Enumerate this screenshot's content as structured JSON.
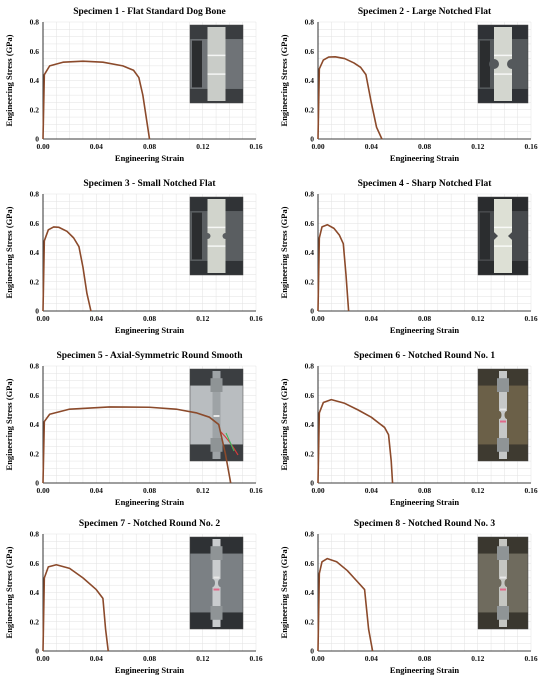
{
  "figure": {
    "xlabel": "Engineering Strain",
    "ylabel": "Engineering Stress (GPa)",
    "line_color": "#8B4A2B",
    "grid_color": "#e2e2e2"
  },
  "chart_data": [
    {
      "type": "line",
      "title": "Specimen 1 - Flat Standard Dog Bone",
      "xlabel": "Engineering Strain",
      "ylabel": "Engineering Stress (GPa)",
      "xlim": [
        0,
        0.16
      ],
      "ylim": [
        0,
        0.8
      ],
      "xticks": [
        "0.00",
        "0.04",
        "0.08",
        "0.12",
        "0.16"
      ],
      "yticks": [
        "0",
        "0.2",
        "0.4",
        "0.6",
        "0.8"
      ],
      "grid": true,
      "photo": "flat-dog-bone-specimen-photo",
      "series": [
        {
          "x": [
            0,
            0.001,
            0.005,
            0.015,
            0.03,
            0.045,
            0.06,
            0.068,
            0.072,
            0.075,
            0.078,
            0.08
          ],
          "y": [
            0,
            0.44,
            0.5,
            0.525,
            0.532,
            0.525,
            0.5,
            0.47,
            0.42,
            0.3,
            0.12,
            0
          ]
        }
      ]
    },
    {
      "type": "line",
      "title": "Specimen 2 - Large Notched Flat",
      "xlabel": "Engineering Strain",
      "ylabel": "Engineering Stress (GPa)",
      "xlim": [
        0,
        0.16
      ],
      "ylim": [
        0,
        0.8
      ],
      "xticks": [
        "0.00",
        "0.04",
        "0.08",
        "0.12",
        "0.16"
      ],
      "yticks": [
        "0",
        "0.2",
        "0.4",
        "0.6",
        "0.8"
      ],
      "grid": true,
      "photo": "large-notched-flat-specimen-photo",
      "series": [
        {
          "x": [
            0,
            0.001,
            0.004,
            0.008,
            0.013,
            0.02,
            0.027,
            0.032,
            0.036,
            0.04,
            0.044,
            0.048
          ],
          "y": [
            0,
            0.48,
            0.54,
            0.56,
            0.562,
            0.55,
            0.52,
            0.49,
            0.44,
            0.25,
            0.08,
            0
          ]
        }
      ]
    },
    {
      "type": "line",
      "title": "Specimen 3 - Small Notched Flat",
      "xlabel": "Engineering Strain",
      "ylabel": "Engineering Stress (GPa)",
      "xlim": [
        0,
        0.16
      ],
      "ylim": [
        0,
        0.8
      ],
      "xticks": [
        "0.00",
        "0.04",
        "0.08",
        "0.12",
        "0.16"
      ],
      "yticks": [
        "0",
        "0.2",
        "0.4",
        "0.6",
        "0.8"
      ],
      "grid": true,
      "photo": "small-notched-flat-specimen-photo",
      "series": [
        {
          "x": [
            0,
            0.001,
            0.004,
            0.008,
            0.012,
            0.018,
            0.023,
            0.027,
            0.03,
            0.033,
            0.036
          ],
          "y": [
            0,
            0.48,
            0.555,
            0.575,
            0.572,
            0.545,
            0.5,
            0.44,
            0.3,
            0.12,
            0
          ]
        }
      ]
    },
    {
      "type": "line",
      "title": "Specimen 4 - Sharp Notched Flat",
      "xlabel": "Engineering Strain",
      "ylabel": "Engineering Stress (GPa)",
      "xlim": [
        0,
        0.16
      ],
      "ylim": [
        0,
        0.8
      ],
      "xticks": [
        "0.00",
        "0.04",
        "0.08",
        "0.12",
        "0.16"
      ],
      "yticks": [
        "0",
        "0.2",
        "0.4",
        "0.6",
        "0.8"
      ],
      "grid": true,
      "photo": "sharp-notched-flat-specimen-photo",
      "series": [
        {
          "x": [
            0,
            0.001,
            0.003,
            0.007,
            0.012,
            0.016,
            0.019,
            0.021,
            0.023
          ],
          "y": [
            0,
            0.5,
            0.575,
            0.59,
            0.565,
            0.52,
            0.46,
            0.25,
            0
          ]
        }
      ]
    },
    {
      "type": "line",
      "title": "Specimen 5 - Axial-Symmetric Round Smooth",
      "xlabel": "Engineering Strain",
      "ylabel": "Engineering Stress (GPa)",
      "xlim": [
        0,
        0.16
      ],
      "ylim": [
        0,
        0.8
      ],
      "xticks": [
        "0.00",
        "0.04",
        "0.08",
        "0.12",
        "0.16"
      ],
      "yticks": [
        "0",
        "0.2",
        "0.4",
        "0.6",
        "0.8"
      ],
      "grid": true,
      "photo": "round-smooth-specimen-photo",
      "series": [
        {
          "x": [
            0,
            0.001,
            0.005,
            0.02,
            0.05,
            0.08,
            0.1,
            0.115,
            0.125,
            0.132,
            0.137,
            0.141
          ],
          "y": [
            0,
            0.42,
            0.47,
            0.505,
            0.52,
            0.518,
            0.505,
            0.48,
            0.45,
            0.4,
            0.2,
            0
          ]
        }
      ]
    },
    {
      "type": "line",
      "title": "Specimen 6 - Notched Round No. 1",
      "xlabel": "Engineering Strain",
      "ylabel": "Engineering Stress (GPa)",
      "xlim": [
        0,
        0.16
      ],
      "ylim": [
        0,
        0.8
      ],
      "xticks": [
        "0.00",
        "0.04",
        "0.08",
        "0.12",
        "0.16"
      ],
      "yticks": [
        "0",
        "0.2",
        "0.4",
        "0.6",
        "0.8"
      ],
      "grid": true,
      "photo": "notched-round-1-specimen-photo",
      "series": [
        {
          "x": [
            0,
            0.001,
            0.004,
            0.01,
            0.02,
            0.03,
            0.04,
            0.05,
            0.053,
            0.055,
            0.056
          ],
          "y": [
            0,
            0.48,
            0.55,
            0.57,
            0.545,
            0.5,
            0.45,
            0.38,
            0.33,
            0.15,
            0
          ]
        }
      ]
    },
    {
      "type": "line",
      "title": "Specimen 7 - Notched Round No. 2",
      "xlabel": "Engineering Strain",
      "ylabel": "Engineering Stress (GPa)",
      "xlim": [
        0,
        0.16
      ],
      "ylim": [
        0,
        0.8
      ],
      "xticks": [
        "0.00",
        "0.04",
        "0.08",
        "0.12",
        "0.16"
      ],
      "yticks": [
        "0",
        "0.2",
        "0.4",
        "0.6",
        "0.8"
      ],
      "grid": true,
      "photo": "notched-round-2-specimen-photo",
      "series": [
        {
          "x": [
            0,
            0.001,
            0.004,
            0.01,
            0.02,
            0.03,
            0.04,
            0.045,
            0.047,
            0.049
          ],
          "y": [
            0,
            0.5,
            0.575,
            0.59,
            0.565,
            0.5,
            0.42,
            0.36,
            0.15,
            0
          ]
        }
      ]
    },
    {
      "type": "line",
      "title": "Specimen 8 - Notched Round No. 3",
      "xlabel": "Engineering Strain",
      "ylabel": "Engineering Stress (GPa)",
      "xlim": [
        0,
        0.16
      ],
      "ylim": [
        0,
        0.8
      ],
      "xticks": [
        "0.00",
        "0.04",
        "0.08",
        "0.12",
        "0.16"
      ],
      "yticks": [
        "0",
        "0.2",
        "0.4",
        "0.6",
        "0.8"
      ],
      "grid": true,
      "photo": "notched-round-3-specimen-photo",
      "series": [
        {
          "x": [
            0,
            0.001,
            0.003,
            0.007,
            0.014,
            0.022,
            0.03,
            0.035,
            0.038,
            0.041
          ],
          "y": [
            0,
            0.53,
            0.61,
            0.632,
            0.61,
            0.55,
            0.47,
            0.42,
            0.15,
            0
          ]
        }
      ]
    }
  ]
}
